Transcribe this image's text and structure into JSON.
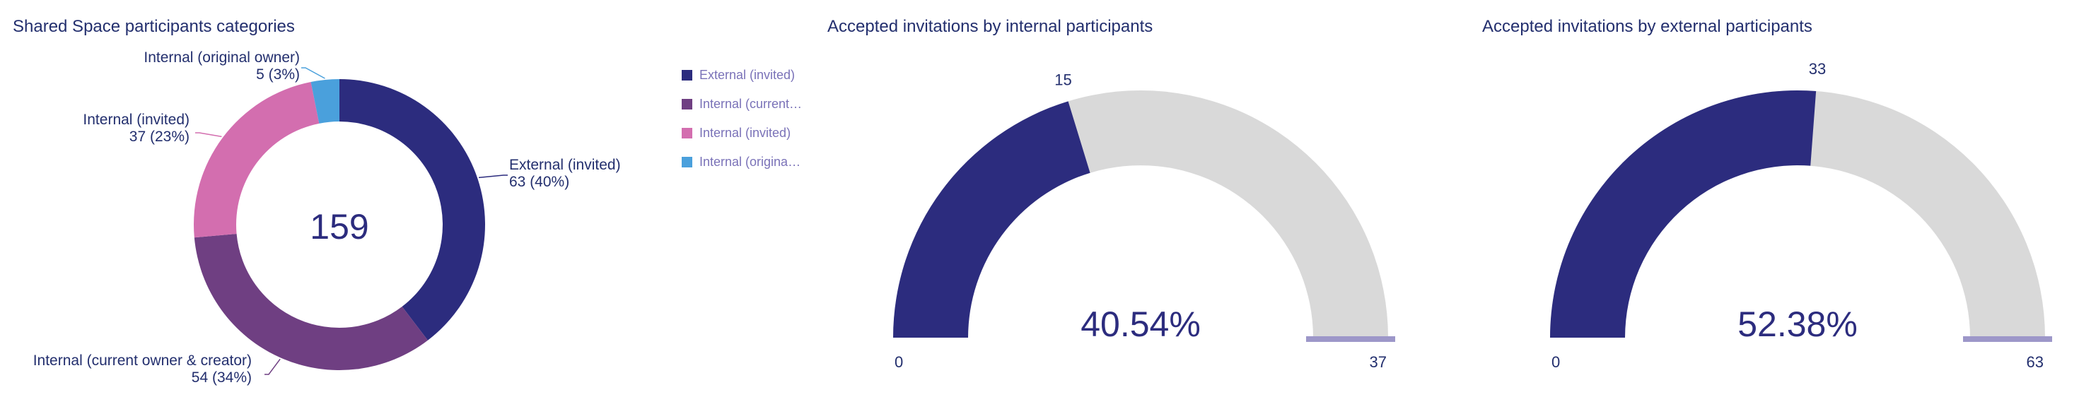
{
  "donut_panel": {
    "title": "Shared Space participants categories",
    "total_label": "159",
    "legend": [
      {
        "label": "External (invited)",
        "color": "#2c2c7e"
      },
      {
        "label": "Internal (current…",
        "color": "#6f3f82"
      },
      {
        "label": "Internal (invited)",
        "color": "#d36eaf"
      },
      {
        "label": "Internal (origina…",
        "color": "#4aa0dc"
      }
    ]
  },
  "gauge_internal": {
    "title": "Accepted invitations by internal participants",
    "percent_label": "40.54%",
    "min_label": "0",
    "max_label": "37",
    "value_label": "15"
  },
  "gauge_external": {
    "title": "Accepted invitations by external participants",
    "percent_label": "52.38%",
    "min_label": "0",
    "max_label": "63",
    "value_label": "33"
  },
  "chart_data": [
    {
      "type": "pie",
      "title": "Shared Space participants categories",
      "center_label": "159",
      "series": [
        {
          "name": "External (invited)",
          "value": 63,
          "label": "External (invited)",
          "value_label": "63 (40%)",
          "color": "#2c2c7e"
        },
        {
          "name": "Internal (current owner & creator)",
          "value": 54,
          "label": "Internal (current owner & creator)",
          "value_label": "54 (34%)",
          "color": "#6f3f82"
        },
        {
          "name": "Internal (invited)",
          "value": 37,
          "label": "Internal (invited)",
          "value_label": "37 (23%)",
          "color": "#d36eaf"
        },
        {
          "name": "Internal (original owner)",
          "value": 5,
          "label": "Internal (original owner)",
          "value_label": "5 (3%)",
          "color": "#4aa0dc"
        }
      ]
    },
    {
      "type": "gauge",
      "title": "Accepted invitations by internal participants",
      "value": 15,
      "min": 0,
      "max": 37,
      "percent": 40.54,
      "fill_color": "#2c2c7e",
      "track_color": "#d9d9d9",
      "marker_color": "#9d97c9"
    },
    {
      "type": "gauge",
      "title": "Accepted invitations by external participants",
      "value": 33,
      "min": 0,
      "max": 63,
      "percent": 52.38,
      "fill_color": "#2c2c7e",
      "track_color": "#d9d9d9",
      "marker_color": "#9d97c9"
    }
  ]
}
